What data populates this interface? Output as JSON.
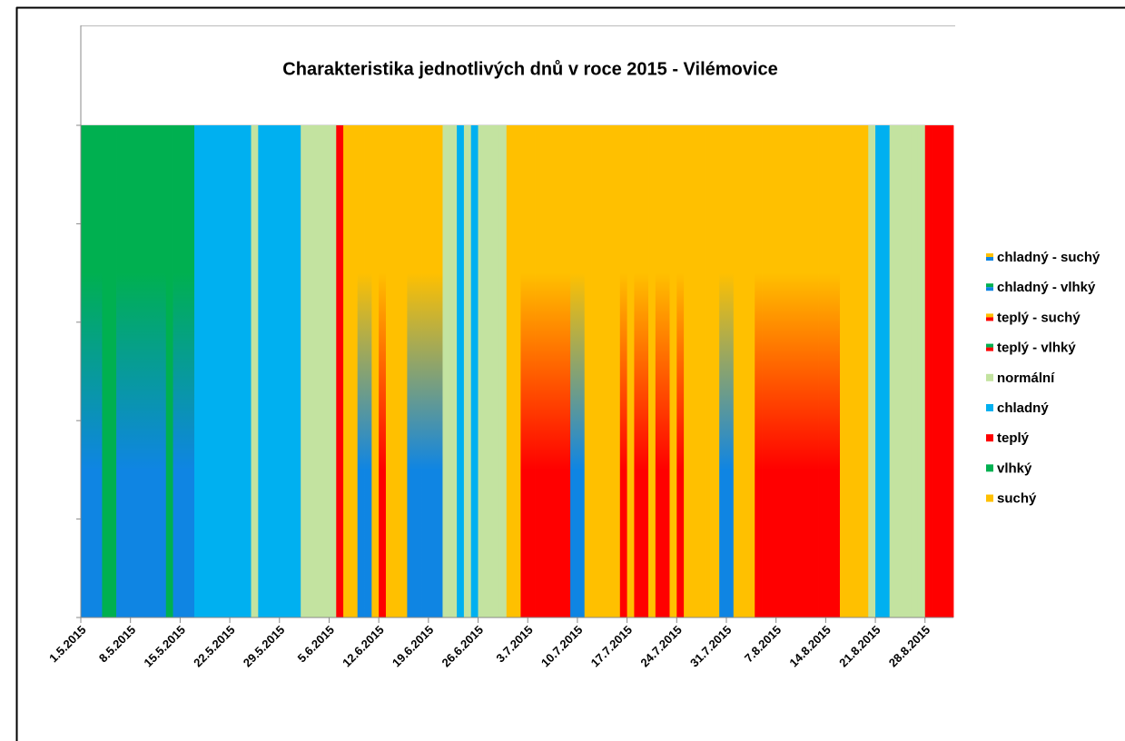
{
  "chart_data": {
    "type": "day_classes",
    "title": "Charakteristika jednotlivých dnů v roce 2015 - Vilémovice",
    "categories": [
      "1.5.2015",
      null,
      null,
      null,
      null,
      null,
      null,
      "8.5.2015",
      null,
      null,
      null,
      null,
      null,
      null,
      "15.5.2015",
      null,
      null,
      null,
      null,
      null,
      null,
      "22.5.2015",
      null,
      null,
      null,
      null,
      null,
      null,
      "29.5.2015",
      null,
      null,
      null,
      null,
      null,
      null,
      "5.6.2015",
      null,
      null,
      null,
      null,
      null,
      null,
      "12.6.2015",
      null,
      null,
      null,
      null,
      null,
      null,
      "19.6.2015",
      null,
      null,
      null,
      null,
      null,
      null,
      "26.6.2015",
      null,
      null,
      null,
      null,
      null,
      null,
      "3.7.2015",
      null,
      null,
      null,
      null,
      null,
      null,
      "10.7.2015",
      null,
      null,
      null,
      null,
      null,
      null,
      "17.7.2015",
      null,
      null,
      null,
      null,
      null,
      null,
      "24.7.2015",
      null,
      null,
      null,
      null,
      null,
      null,
      "31.7.2015",
      null,
      null,
      null,
      null,
      null,
      null,
      "7.8.2015",
      null,
      null,
      null,
      null,
      null,
      null,
      "14.8.2015",
      null,
      null,
      null,
      null,
      null,
      null,
      "21.8.2015",
      null,
      null,
      null,
      null,
      null,
      null,
      "28.8.2015",
      null,
      null,
      null
    ],
    "day_class": [
      1,
      1,
      1,
      7,
      7,
      1,
      1,
      1,
      1,
      1,
      1,
      1,
      7,
      1,
      1,
      1,
      5,
      5,
      5,
      5,
      5,
      5,
      5,
      5,
      4,
      5,
      5,
      5,
      5,
      5,
      5,
      4,
      4,
      4,
      4,
      4,
      6,
      8,
      8,
      0,
      0,
      8,
      2,
      8,
      8,
      8,
      0,
      0,
      0,
      0,
      0,
      4,
      4,
      5,
      4,
      5,
      4,
      4,
      4,
      4,
      8,
      8,
      2,
      2,
      2,
      2,
      2,
      2,
      2,
      0,
      0,
      8,
      8,
      8,
      8,
      8,
      2,
      8,
      2,
      2,
      8,
      2,
      2,
      8,
      2,
      8,
      8,
      8,
      8,
      8,
      0,
      0,
      8,
      8,
      8,
      2,
      2,
      2,
      2,
      2,
      2,
      2,
      2,
      2,
      2,
      2,
      2,
      8,
      8,
      8,
      8,
      4,
      5,
      5,
      4,
      4,
      4,
      4,
      4,
      6,
      6,
      6,
      6
    ],
    "series": [
      {
        "name": "chladný - suchý",
        "colors": [
          "#0f85e3",
          "#ffc000"
        ]
      },
      {
        "name": "chladný - vlhký",
        "colors": [
          "#0f85e3",
          "#00b050"
        ]
      },
      {
        "name": "teplý - suchý",
        "colors": [
          "#ff0000",
          "#ffc000"
        ]
      },
      {
        "name": "teplý - vlhký",
        "colors": [
          "#ff0000",
          "#00b050"
        ]
      },
      {
        "name": "normální",
        "colors": [
          "#c3e3a0"
        ]
      },
      {
        "name": "chladný",
        "colors": [
          "#00b0f0"
        ]
      },
      {
        "name": "teplý",
        "colors": [
          "#ff0000"
        ]
      },
      {
        "name": "vlhký",
        "colors": [
          "#00b050"
        ]
      },
      {
        "name": "suchý",
        "colors": [
          "#ffc000"
        ]
      }
    ],
    "ylim": [
      0,
      5
    ],
    "yticks": [
      0,
      1,
      2,
      3,
      4,
      5
    ]
  }
}
